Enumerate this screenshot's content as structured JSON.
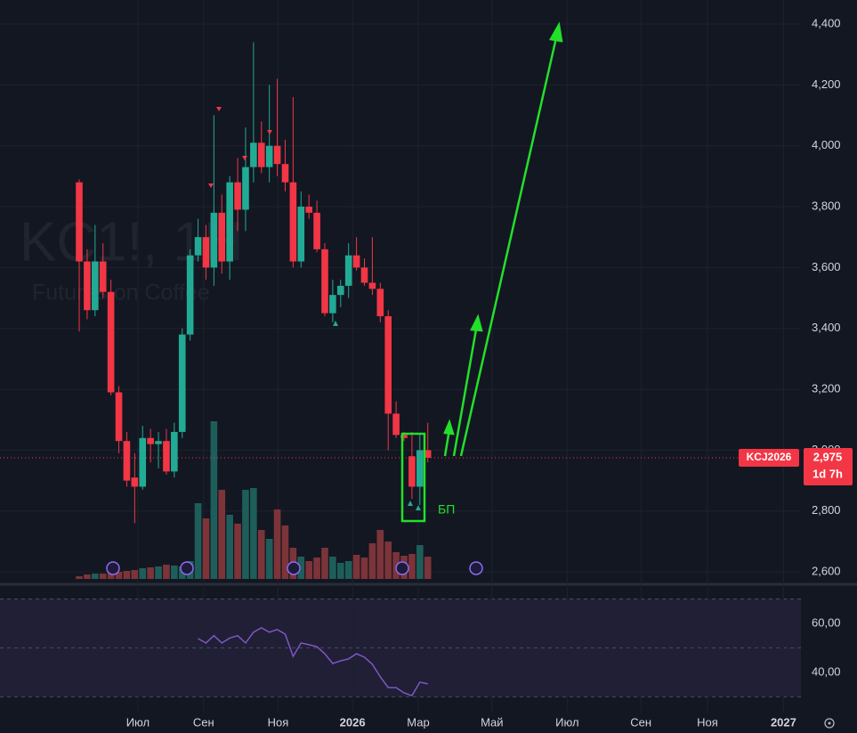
{
  "chart_data": {
    "type": "candlestick",
    "watermark": "KC1!, 1Н",
    "watermark_subtitle": "Futures on Coffee",
    "categories": [
      null,
      null,
      null,
      null,
      null,
      null,
      null,
      null,
      null,
      null,
      null,
      null,
      null,
      null,
      null,
      null,
      null,
      null,
      null,
      null,
      null,
      null,
      null,
      null,
      null,
      null,
      null,
      null,
      null,
      null,
      null,
      null,
      null,
      null,
      null,
      null,
      null,
      null,
      null,
      null,
      null,
      null,
      null,
      null,
      null
    ],
    "open": [
      3880,
      3620,
      3460,
      3620,
      3520,
      3190,
      3030,
      2910,
      2880,
      3040,
      3020,
      3030,
      2930,
      3060,
      3380,
      3640,
      3700,
      3600,
      3780,
      3620,
      3880,
      3790,
      3930,
      4010,
      3930,
      4000,
      3940,
      3880,
      3620,
      3800,
      3780,
      3660,
      3450,
      3510,
      3540,
      3640,
      3600,
      3550,
      3530,
      3440,
      3120,
      3050,
      2980,
      2880,
      3000
    ],
    "high": [
      3890,
      3660,
      3740,
      3680,
      3560,
      3210,
      3060,
      2990,
      3080,
      3070,
      3060,
      3070,
      3090,
      3400,
      3660,
      3760,
      3740,
      4100,
      3840,
      3900,
      3960,
      4060,
      4340,
      4080,
      4200,
      4220,
      4020,
      4160,
      3850,
      3840,
      3820,
      3680,
      3560,
      3560,
      3680,
      3700,
      3630,
      3700,
      3550,
      3460,
      3160,
      3060,
      3060,
      3050,
      3090
    ],
    "low": [
      3390,
      3430,
      3440,
      3500,
      3180,
      2990,
      2880,
      2760,
      2870,
      2960,
      2940,
      2920,
      2910,
      3040,
      3360,
      3620,
      3560,
      3540,
      3580,
      3560,
      3720,
      3720,
      3880,
      3910,
      3880,
      3900,
      3850,
      3600,
      3600,
      3760,
      3650,
      3440,
      3420,
      3470,
      3500,
      3590,
      3540,
      3510,
      3420,
      3000,
      3040,
      3030,
      2840,
      2820,
      2960
    ],
    "close": [
      3620,
      3460,
      3620,
      3520,
      3190,
      3030,
      2900,
      2880,
      3040,
      3020,
      3030,
      2930,
      3060,
      3380,
      3640,
      3700,
      3600,
      3780,
      3620,
      3880,
      3790,
      3930,
      4010,
      3930,
      4000,
      3940,
      3880,
      3620,
      3800,
      3780,
      3660,
      3450,
      3510,
      3540,
      3640,
      3600,
      3550,
      3530,
      3440,
      3120,
      3050,
      3040,
      2880,
      3000,
      2975
    ],
    "up_color": "#22ab94",
    "down_color": "#f23645",
    "volume": [
      3,
      5,
      6,
      6,
      7,
      8,
      9,
      10,
      12,
      13,
      14,
      16,
      15,
      14,
      20,
      85,
      68,
      177,
      100,
      72,
      62,
      100,
      102,
      55,
      45,
      78,
      60,
      35,
      25,
      20,
      24,
      35,
      25,
      18,
      20,
      27,
      24,
      40,
      55,
      42,
      30,
      26,
      28,
      38,
      25
    ],
    "volume_lim": [
      0,
      200
    ],
    "volume_up_color": "#1e5e5a",
    "volume_down_color": "#7c3439",
    "rsi": [
      null,
      null,
      null,
      null,
      null,
      null,
      null,
      null,
      null,
      null,
      null,
      null,
      null,
      null,
      null,
      53.8,
      52,
      55,
      52,
      54,
      55,
      52,
      56.4,
      58.2,
      56.4,
      57.5,
      55.6,
      46.5,
      52,
      51.3,
      50.5,
      47.6,
      43.6,
      44.7,
      45.5,
      47.6,
      46.2,
      43.3,
      38.2,
      33.8,
      33.8,
      31.6,
      30.5,
      36,
      35.3
    ],
    "rsi_color": "#7e57c2",
    "rsi_lim": [
      23.6,
      73.8
    ],
    "rsi_levels": [
      70,
      50,
      30
    ],
    "rsi_ticks": [
      {
        "value": 60,
        "label": "60,00"
      },
      {
        "value": 40,
        "label": "40,00"
      }
    ],
    "ylim": [
      2577,
      4479
    ],
    "yticks": [
      {
        "value": 2600,
        "label": "2,600"
      },
      {
        "value": 2800,
        "label": "2,800"
      },
      {
        "value": 3000,
        "label": "3,000"
      },
      {
        "value": 3200,
        "label": "3,200"
      },
      {
        "value": 3400,
        "label": "3,400"
      },
      {
        "value": 3600,
        "label": "3,600"
      },
      {
        "value": 3800,
        "label": "3,800"
      },
      {
        "value": 4000,
        "label": "4,000"
      },
      {
        "value": 4200,
        "label": "4,200"
      },
      {
        "value": 4400,
        "label": "4,400"
      }
    ],
    "xlim": [
      -10,
      91.1
    ],
    "xticks": [
      {
        "value": 7.4,
        "label": "Июл"
      },
      {
        "value": 15.7,
        "label": "Сен"
      },
      {
        "value": 25.1,
        "label": "Ноя"
      },
      {
        "value": 34.5,
        "label": "2026"
      },
      {
        "value": 42.8,
        "label": "Мар"
      },
      {
        "value": 52.1,
        "label": "Май"
      },
      {
        "value": 61.6,
        "label": "Июл"
      },
      {
        "value": 70.9,
        "label": "Сен"
      },
      {
        "value": 79.3,
        "label": "Ноя"
      },
      {
        "value": 88.9,
        "label": "2027"
      }
    ],
    "grid": true,
    "price_tag": {
      "value": 2975,
      "label": "2,975",
      "countdown": "1d 7h",
      "symbol": "KCJ2026"
    },
    "annotation": "БП"
  }
}
